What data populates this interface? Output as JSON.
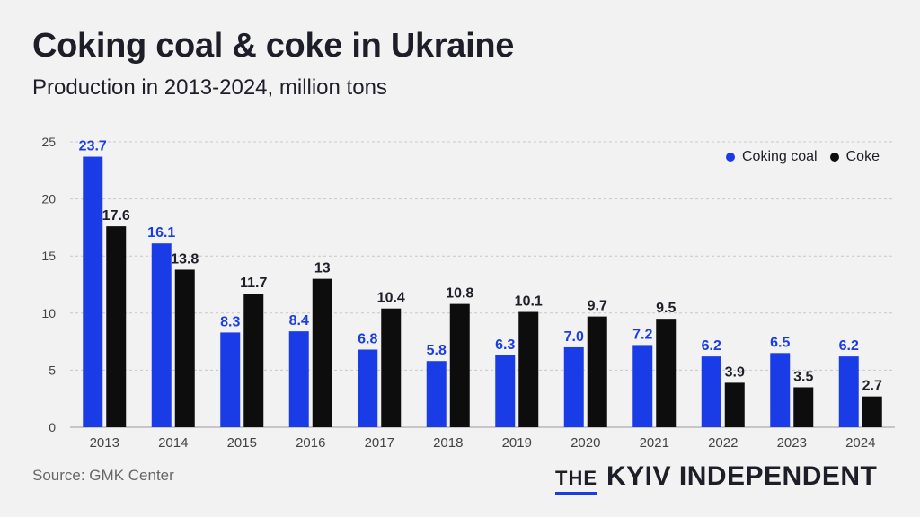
{
  "title": "Coking coal & coke in Ukraine",
  "subtitle": "Production in 2013-2024, million tons",
  "source": "Source: GMK Center",
  "brand": {
    "the": "THE",
    "name": "KYIV INDEPENDENT"
  },
  "colors": {
    "coking_coal": "#1a3ce6",
    "coke": "#0d0d0d",
    "grid": "#c8c8c8",
    "axis_text": "#444444"
  },
  "chart_data": {
    "type": "bar",
    "categories": [
      "2013",
      "2014",
      "2015",
      "2016",
      "2017",
      "2018",
      "2019",
      "2020",
      "2021",
      "2022",
      "2023",
      "2024"
    ],
    "series": [
      {
        "name": "Coking coal",
        "values": [
          23.7,
          16.1,
          8.3,
          8.4,
          6.8,
          5.8,
          6.3,
          7.0,
          7.2,
          6.2,
          6.5,
          6.2
        ],
        "labels": [
          "23.7",
          "16.1",
          "8.3",
          "8.4",
          "6.8",
          "5.8",
          "6.3",
          "7.0",
          "7.2",
          "6.2",
          "6.5",
          "6.2"
        ]
      },
      {
        "name": "Coke",
        "values": [
          17.6,
          13.8,
          11.7,
          13,
          10.4,
          10.8,
          10.1,
          9.7,
          9.5,
          3.9,
          3.5,
          2.7
        ],
        "labels": [
          "17.6",
          "13.8",
          "11.7",
          "13",
          "10.4",
          "10.8",
          "10.1",
          "9.7",
          "9.5",
          "3.9",
          "3.5",
          "2.7"
        ]
      }
    ],
    "yticks": [
      "0",
      "5",
      "10",
      "15",
      "20",
      "25"
    ],
    "ylim": [
      0,
      25
    ],
    "grid": true,
    "legend_position": "top-right"
  }
}
